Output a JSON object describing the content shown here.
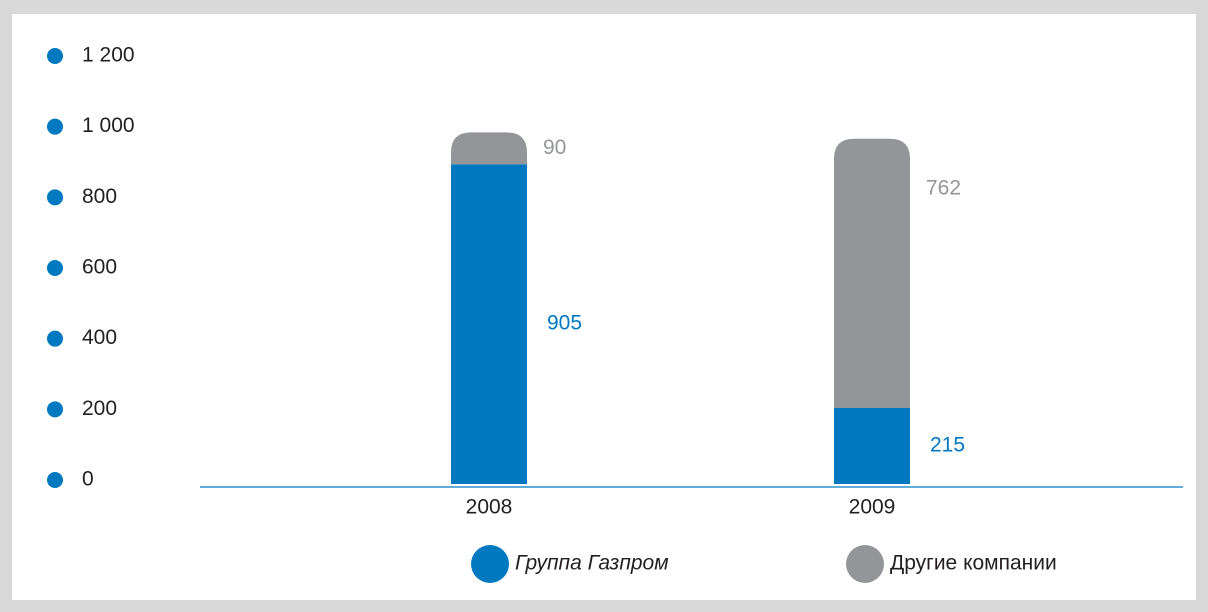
{
  "chart_data": {
    "type": "stacked_bar",
    "categories": [
      "2008",
      "2009"
    ],
    "series": [
      {
        "name": "Группа Газпром",
        "color": "#0079c1",
        "values": [
          905,
          215
        ]
      },
      {
        "name": "Другие компании",
        "color": "#939598",
        "values": [
          90,
          762
        ]
      }
    ],
    "ylim": [
      0,
      1200
    ],
    "yticks": [
      0,
      200,
      400,
      600,
      800,
      {
        "value": 1000,
        "label": "1 000"
      },
      {
        "value": 1200,
        "label": "1 200"
      }
    ],
    "tick_color": "#0079c1"
  }
}
